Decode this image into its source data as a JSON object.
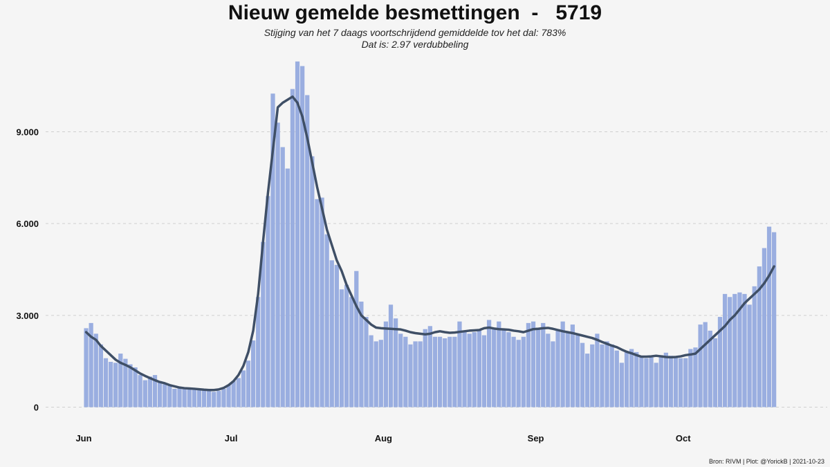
{
  "header": {
    "title": "Nieuw gemelde besmettingen  -   5719",
    "subtitle_line1": "Stijging van het 7 daags voortschrijdend gemiddelde tov het dal: 783%",
    "subtitle_line2": "Dat is: 2.97 verdubbeling"
  },
  "caption": "Bron: RIVM | Plot: @YorickB |  2021-10-23",
  "colors": {
    "bar": "#9aaee0",
    "line": "#3f4f66",
    "grid": "#cfcfcf",
    "background": "#f5f5f5"
  },
  "chart_data": {
    "type": "bar",
    "x_start": "2021-06-01",
    "x_end": "2021-10-22",
    "ylim": [
      -600,
      11500
    ],
    "grid": "horizontal dashed",
    "y_ticks": [
      {
        "value": 0,
        "label": "0"
      },
      {
        "value": 3000,
        "label": "3.000"
      },
      {
        "value": 6000,
        "label": "6.000"
      },
      {
        "value": 9000,
        "label": "9.000"
      }
    ],
    "x_ticks": [
      {
        "date": "2021-06-01",
        "label": "Jun"
      },
      {
        "date": "2021-07-01",
        "label": "Jul"
      },
      {
        "date": "2021-08-01",
        "label": "Aug"
      },
      {
        "date": "2021-09-01",
        "label": "Sep"
      },
      {
        "date": "2021-10-01",
        "label": "Oct"
      }
    ],
    "series": [
      {
        "kind": "bar",
        "values": [
          2580,
          2750,
          2400,
          2050,
          1600,
          1480,
          1450,
          1750,
          1580,
          1400,
          1300,
          1050,
          880,
          1000,
          1050,
          850,
          750,
          700,
          600,
          620,
          650,
          600,
          620,
          580,
          550,
          560,
          500,
          530,
          600,
          730,
          850,
          950,
          1200,
          1520,
          2180,
          3600,
          5400,
          6900,
          10250,
          9300,
          8500,
          7800,
          10400,
          11300,
          11150,
          10200,
          8200,
          6800,
          6850,
          5650,
          4800,
          4650,
          3850,
          4000,
          3600,
          4450,
          3450,
          2950,
          2350,
          2150,
          2200,
          2800,
          3350,
          2900,
          2400,
          2300,
          2050,
          2150,
          2150,
          2550,
          2650,
          2300,
          2300,
          2250,
          2300,
          2300,
          2800,
          2500,
          2400,
          2450,
          2500,
          2350,
          2850,
          2550,
          2800,
          2550,
          2450,
          2300,
          2200,
          2300,
          2750,
          2800,
          2600,
          2750,
          2400,
          2150,
          2550,
          2800,
          2450,
          2700,
          2350,
          2100,
          1750,
          2050,
          2400,
          2050,
          2150,
          2050,
          1850,
          1450,
          1800,
          1900,
          1800,
          1650,
          1600,
          1650,
          1450,
          1700,
          1780,
          1680,
          1620,
          1600,
          1600,
          1900,
          1950,
          2700,
          2780,
          2500,
          2250,
          2950,
          3700,
          3600,
          3700,
          3750,
          3700,
          3350,
          3950,
          4600,
          5200,
          5900,
          5719
        ]
      },
      {
        "kind": "line",
        "values": [
          2450,
          2300,
          2200,
          2000,
          1850,
          1700,
          1550,
          1450,
          1380,
          1300,
          1200,
          1100,
          1020,
          950,
          880,
          820,
          780,
          720,
          680,
          640,
          620,
          610,
          600,
          585,
          570,
          560,
          560,
          580,
          630,
          720,
          850,
          1050,
          1350,
          1800,
          2500,
          3700,
          5400,
          7000,
          8400,
          9800,
          9950,
          10050,
          10150,
          9950,
          9500,
          8800,
          8000,
          7200,
          6500,
          5800,
          5300,
          4800,
          4450,
          4000,
          3650,
          3300,
          3000,
          2850,
          2700,
          2600,
          2580,
          2570,
          2560,
          2550,
          2540,
          2500,
          2450,
          2420,
          2400,
          2380,
          2400,
          2450,
          2480,
          2450,
          2430,
          2440,
          2460,
          2480,
          2500,
          2510,
          2520,
          2580,
          2600,
          2570,
          2550,
          2540,
          2530,
          2500,
          2480,
          2450,
          2500,
          2550,
          2560,
          2580,
          2590,
          2560,
          2520,
          2480,
          2450,
          2420,
          2380,
          2340,
          2300,
          2260,
          2200,
          2130,
          2070,
          2010,
          1960,
          1880,
          1810,
          1760,
          1700,
          1650,
          1650,
          1660,
          1680,
          1660,
          1640,
          1630,
          1640,
          1660,
          1700,
          1720,
          1750,
          1900,
          2050,
          2200,
          2350,
          2500,
          2650,
          2850,
          3000,
          3200,
          3400,
          3550,
          3700,
          3850,
          4050,
          4300,
          4600
        ]
      }
    ]
  }
}
